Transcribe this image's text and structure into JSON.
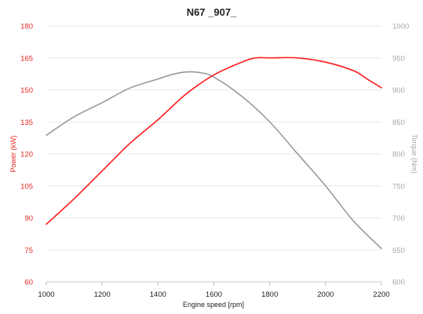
{
  "chart_data": {
    "type": "line",
    "title": "N67 _907_",
    "xlabel": "Engine speed [rpm]",
    "ylabel_left": "Power (kW)",
    "ylabel_right": "Torque (Nm)",
    "x_ticks": [
      1000,
      1200,
      1400,
      1600,
      1800,
      2000,
      2200
    ],
    "y_left_ticks": [
      60,
      75,
      90,
      105,
      120,
      135,
      150,
      165,
      180
    ],
    "y_right_ticks": [
      600,
      650,
      700,
      750,
      800,
      850,
      900,
      950,
      1000
    ],
    "xlim": [
      1000,
      2200
    ],
    "ylim_left": [
      60,
      180
    ],
    "ylim_right": [
      600,
      1000
    ],
    "grid": true,
    "colors": {
      "power": "#ff1a1a",
      "torque": "#999999",
      "left_axis_text": "#e8271f",
      "right_axis_text": "#a6a6a6"
    },
    "series": [
      {
        "axis": "left",
        "x": [
          1000,
          1100,
          1200,
          1300,
          1400,
          1500,
          1600,
          1700,
          1750,
          1800,
          1900,
          2000,
          2100,
          2150,
          2200
        ],
        "values": [
          87,
          99,
          112,
          125,
          136,
          148,
          157,
          163,
          165,
          165,
          165,
          163,
          159,
          155,
          151
        ]
      },
      {
        "axis": "right",
        "x": [
          1000,
          1100,
          1200,
          1300,
          1400,
          1450,
          1500,
          1550,
          1600,
          1700,
          1800,
          1900,
          2000,
          2100,
          2200
        ],
        "values": [
          829,
          858,
          880,
          903,
          917,
          924,
          928,
          927,
          920,
          890,
          850,
          800,
          750,
          695,
          652
        ]
      }
    ]
  }
}
